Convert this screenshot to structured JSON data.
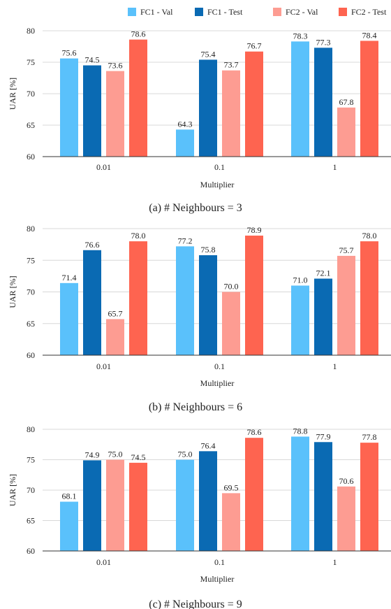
{
  "legend": {
    "placement": "top-right",
    "entries": [
      {
        "label": "FC1 - Val",
        "color": "#5ac1fb"
      },
      {
        "label": "FC1 - Test",
        "color": "#0a6ab3"
      },
      {
        "label": "FC2 - Val",
        "color": "#fd9c92"
      },
      {
        "label": "FC2 - Test",
        "color": "#fe6450"
      }
    ]
  },
  "chart_data": [
    {
      "type": "bar",
      "caption": "(a) # Neighbours = 3",
      "xlabel": "Multiplier",
      "ylabel": "UAR [%]",
      "ylim": [
        60,
        80
      ],
      "yticks": [
        "60",
        "65",
        "70",
        "75",
        "80"
      ],
      "categories": [
        "0.01",
        "0.1",
        "1"
      ],
      "series": [
        {
          "name": "FC1 - Val",
          "values": [
            75.6,
            64.3,
            78.3
          ],
          "labels": [
            "75.6",
            "64.3",
            "78.3"
          ]
        },
        {
          "name": "FC1 - Test",
          "values": [
            74.5,
            75.4,
            77.3
          ],
          "labels": [
            "74.5",
            "75.4",
            "77.3"
          ]
        },
        {
          "name": "FC2 - Val",
          "values": [
            73.6,
            73.7,
            67.8
          ],
          "labels": [
            "73.6",
            "73.7",
            "67.8"
          ]
        },
        {
          "name": "FC2 - Test",
          "values": [
            78.6,
            76.7,
            78.4
          ],
          "labels": [
            "78.6",
            "76.7",
            "78.4"
          ]
        }
      ]
    },
    {
      "type": "bar",
      "caption": "(b) # Neighbours = 6",
      "xlabel": "Multiplier",
      "ylabel": "UAR [%]",
      "ylim": [
        60,
        80
      ],
      "yticks": [
        "60",
        "65",
        "70",
        "75",
        "80"
      ],
      "categories": [
        "0.01",
        "0.1",
        "1"
      ],
      "series": [
        {
          "name": "FC1 - Val",
          "values": [
            71.4,
            77.2,
            71.0
          ],
          "labels": [
            "71.4",
            "77.2",
            "71.0"
          ]
        },
        {
          "name": "FC1 - Test",
          "values": [
            76.6,
            75.8,
            72.1
          ],
          "labels": [
            "76.6",
            "75.8",
            "72.1"
          ]
        },
        {
          "name": "FC2 - Val",
          "values": [
            65.7,
            70.0,
            75.7
          ],
          "labels": [
            "65.7",
            "70.0",
            "75.7"
          ]
        },
        {
          "name": "FC2 - Test",
          "values": [
            78.0,
            78.9,
            78.0
          ],
          "labels": [
            "78.0",
            "78.9",
            "78.0"
          ]
        }
      ]
    },
    {
      "type": "bar",
      "caption": "(c) # Neighbours = 9",
      "xlabel": "Multiplier",
      "ylabel": "UAR [%]",
      "ylim": [
        60,
        80
      ],
      "yticks": [
        "60",
        "65",
        "70",
        "75",
        "80"
      ],
      "categories": [
        "0.01",
        "0.1",
        "1"
      ],
      "series": [
        {
          "name": "FC1 - Val",
          "values": [
            68.1,
            75.0,
            78.8
          ],
          "labels": [
            "68.1",
            "75.0",
            "78.8"
          ]
        },
        {
          "name": "FC1 - Test",
          "values": [
            74.9,
            76.4,
            77.9
          ],
          "labels": [
            "74.9",
            "76.4",
            "77.9"
          ]
        },
        {
          "name": "FC2 - Val",
          "values": [
            75.0,
            69.5,
            70.6
          ],
          "labels": [
            "75.0",
            "69.5",
            "70.6"
          ]
        },
        {
          "name": "FC2 - Test",
          "values": [
            74.5,
            78.6,
            77.8
          ],
          "labels": [
            "74.5",
            "78.6",
            "77.8"
          ]
        }
      ]
    }
  ]
}
